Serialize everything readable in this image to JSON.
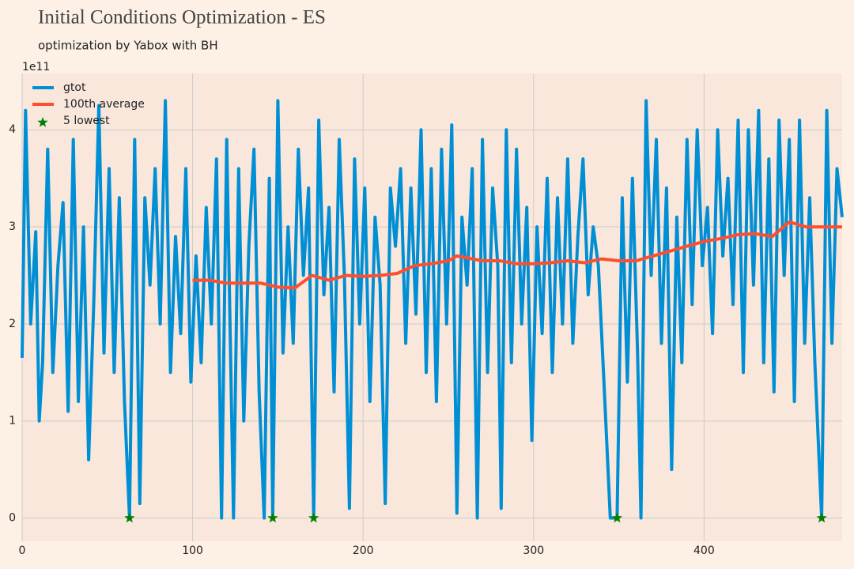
{
  "chart_data": {
    "type": "line",
    "title": "Initial Conditions Optimization - ES",
    "subtitle": "optimization by Yabox with BH",
    "y_offset_label": "1e11",
    "xlim": [
      0,
      481
    ],
    "ylim": [
      -0.24,
      4.58
    ],
    "xticks": [
      0,
      100,
      200,
      300,
      400
    ],
    "yticks": [
      0,
      1,
      2,
      3,
      4
    ],
    "grid": true,
    "legend": "upper left",
    "series": [
      {
        "name": "gtot",
        "color": "#008fd5",
        "mark": "line",
        "x": [
          0,
          2,
          5,
          8,
          10,
          12,
          15,
          18,
          21,
          24,
          27,
          30,
          33,
          36,
          39,
          42,
          45,
          48,
          51,
          54,
          57,
          60,
          63,
          66,
          69,
          72,
          75,
          78,
          81,
          84,
          87,
          90,
          93,
          96,
          99,
          102,
          105,
          108,
          111,
          114,
          117,
          120,
          124,
          127,
          130,
          133,
          136,
          139,
          142,
          145,
          147,
          150,
          153,
          156,
          159,
          162,
          165,
          168,
          171,
          174,
          177,
          180,
          183,
          186,
          189,
          192,
          195,
          198,
          201,
          204,
          207,
          210,
          213,
          216,
          219,
          222,
          225,
          228,
          231,
          234,
          237,
          240,
          243,
          246,
          249,
          252,
          255,
          258,
          261,
          264,
          267,
          270,
          273,
          276,
          279,
          281,
          284,
          287,
          290,
          293,
          296,
          299,
          302,
          305,
          308,
          311,
          314,
          317,
          320,
          323,
          326,
          329,
          332,
          335,
          338,
          341,
          345,
          349,
          352,
          355,
          358,
          361,
          363,
          366,
          369,
          372,
          375,
          378,
          381,
          384,
          387,
          390,
          393,
          396,
          399,
          402,
          405,
          408,
          411,
          414,
          417,
          420,
          423,
          426,
          429,
          432,
          435,
          438,
          441,
          444,
          447,
          450,
          453,
          456,
          459,
          462,
          465,
          469,
          472,
          475,
          478,
          481
        ],
        "values": [
          1.65,
          4.2,
          2.0,
          2.95,
          1.0,
          1.6,
          3.8,
          1.5,
          2.6,
          3.25,
          1.1,
          3.9,
          1.2,
          3.0,
          0.6,
          2.2,
          4.25,
          1.7,
          3.6,
          1.5,
          3.3,
          1.2,
          0,
          3.9,
          0.15,
          3.3,
          2.4,
          3.6,
          2.0,
          4.3,
          1.5,
          2.9,
          1.9,
          3.6,
          1.4,
          2.7,
          1.6,
          3.2,
          2.0,
          3.7,
          0,
          3.9,
          0,
          3.6,
          1.0,
          2.8,
          3.8,
          1.3,
          0,
          3.5,
          0,
          4.3,
          1.7,
          3.0,
          1.8,
          3.8,
          2.5,
          3.4,
          0,
          4.1,
          2.3,
          3.2,
          1.3,
          3.9,
          2.5,
          0.1,
          3.7,
          2.0,
          3.4,
          1.2,
          3.1,
          2.4,
          0.15,
          3.4,
          2.8,
          3.6,
          1.8,
          3.4,
          2.1,
          4.0,
          1.5,
          3.6,
          1.2,
          3.8,
          2.0,
          4.05,
          0.05,
          3.1,
          2.4,
          3.6,
          0,
          3.9,
          1.5,
          3.4,
          2.6,
          0.1,
          4.0,
          1.6,
          3.8,
          2.0,
          3.2,
          0.8,
          3.0,
          1.9,
          3.5,
          1.5,
          3.3,
          2.0,
          3.7,
          1.8,
          2.9,
          3.7,
          2.3,
          3.0,
          2.6,
          1.5,
          0,
          0,
          3.3,
          1.4,
          3.5,
          1.7,
          0,
          4.3,
          2.5,
          3.9,
          1.8,
          3.4,
          0.5,
          3.1,
          1.6,
          3.9,
          2.2,
          4.0,
          2.6,
          3.2,
          1.9,
          4.0,
          2.7,
          3.5,
          2.2,
          4.1,
          1.5,
          4.0,
          2.4,
          4.2,
          1.6,
          3.7,
          1.3,
          4.1,
          2.5,
          3.9,
          1.2,
          4.1,
          1.8,
          3.3,
          1.6,
          0,
          4.2,
          1.8,
          3.6,
          3.1
        ]
      },
      {
        "name": "100th average",
        "color": "#fc4f30",
        "mark": "line",
        "x": [
          100,
          110,
          120,
          130,
          140,
          150,
          160,
          170,
          180,
          190,
          200,
          210,
          220,
          230,
          240,
          250,
          255,
          270,
          280,
          290,
          300,
          310,
          320,
          330,
          340,
          350,
          360,
          370,
          380,
          390,
          400,
          410,
          420,
          430,
          440,
          450,
          460,
          470,
          481
        ],
        "values": [
          2.45,
          2.45,
          2.42,
          2.42,
          2.42,
          2.38,
          2.37,
          2.5,
          2.45,
          2.5,
          2.49,
          2.5,
          2.52,
          2.6,
          2.62,
          2.65,
          2.7,
          2.65,
          2.65,
          2.62,
          2.62,
          2.63,
          2.65,
          2.63,
          2.67,
          2.65,
          2.65,
          2.7,
          2.75,
          2.8,
          2.85,
          2.88,
          2.92,
          2.93,
          2.9,
          3.05,
          3.0,
          3.0,
          3.0
        ]
      },
      {
        "name": "5 lowest",
        "color": "#008000",
        "mark": "star",
        "x": [
          63,
          147,
          171,
          349,
          469
        ],
        "values": [
          0,
          0,
          0,
          0,
          0
        ]
      }
    ]
  }
}
